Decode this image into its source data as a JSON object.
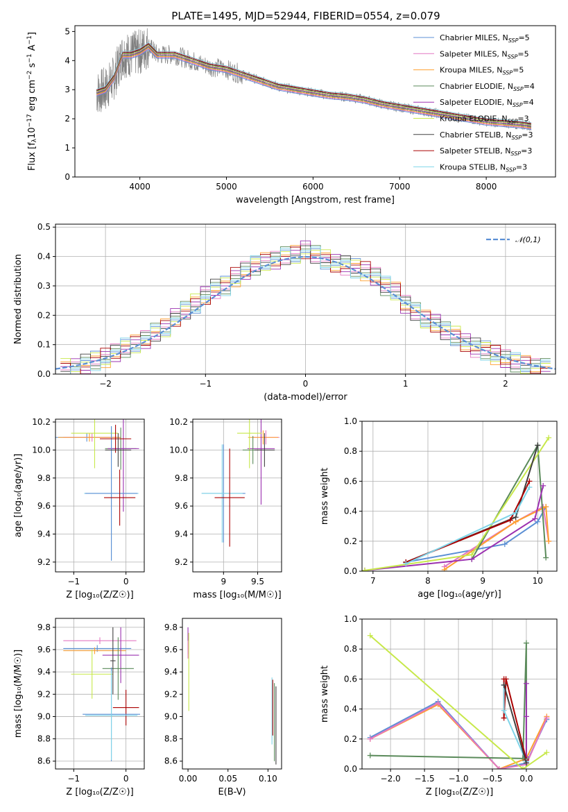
{
  "figure_title": "PLATE=1495, MJD=52944, FIBERID=0554, z=0.079",
  "colors": {
    "spectrum": "#808080",
    "grid": "#b0b0b0",
    "gauss": "#5b8fd4"
  },
  "chart_data": [
    {
      "id": "spectrum",
      "type": "line",
      "title": "PLATE=1495, MJD=52944, FIBERID=0554, z=0.079",
      "xlabel": "wavelength [Angstrom, rest frame]",
      "ylabel_parts": [
        "Flux [f",
        "λ",
        "10",
        "−17",
        " erg cm",
        "−2",
        " s",
        "−1",
        " A",
        "−1",
        "]"
      ],
      "xlim": [
        3250,
        8800
      ],
      "ylim": [
        0,
        5.2
      ],
      "xticks": [
        4000,
        5000,
        6000,
        7000,
        8000
      ],
      "yticks": [
        0,
        1,
        2,
        3,
        4,
        5
      ],
      "grid": false,
      "legend_position": "top-right",
      "data_series": {
        "name": "data",
        "x": [
          3500,
          3600,
          3700,
          3800,
          3900,
          4000,
          4100,
          4200,
          4400,
          4600,
          4800,
          5000,
          5200,
          5400,
          5600,
          5800,
          6000,
          6200,
          6400,
          6600,
          6800,
          7000,
          7200,
          7400,
          7600,
          7800,
          8000,
          8200,
          8400,
          8520
        ],
        "y": [
          2.9,
          3.0,
          3.4,
          4.2,
          4.2,
          4.3,
          4.5,
          4.2,
          4.2,
          4.0,
          3.8,
          3.7,
          3.5,
          3.3,
          3.1,
          3.0,
          2.9,
          2.8,
          2.75,
          2.65,
          2.5,
          2.4,
          2.3,
          2.2,
          2.1,
          2.0,
          1.9,
          1.85,
          1.8,
          1.75
        ]
      },
      "legend": [
        {
          "name": "Chabrier MILES",
          "sub": "SSP",
          "n": "5"
        },
        {
          "name": "Salpeter MILES",
          "sub": "SSP",
          "n": "5"
        },
        {
          "name": "Kroupa MILES",
          "sub": "SSP",
          "n": "5"
        },
        {
          "name": "Chabrier ELODIE",
          "sub": "SSP",
          "n": "4"
        },
        {
          "name": "Salpeter ELODIE",
          "sub": "SSP",
          "n": "4"
        },
        {
          "name": "Kroupa ELODIE",
          "sub": "SSP",
          "n": "3"
        },
        {
          "name": "Chabrier STELIB",
          "sub": "SSP",
          "n": "3"
        },
        {
          "name": "Salpeter STELIB",
          "sub": "SSP",
          "n": "3"
        },
        {
          "name": "Kroupa STELIB",
          "sub": "SSP",
          "n": "3"
        }
      ],
      "model_colors": [
        "#5b8fd4",
        "#e377c2",
        "#ff9f2e",
        "#5a8a5a",
        "#9b30b0",
        "#c7e84a",
        "#404040",
        "#aa0000",
        "#7fd4e8"
      ]
    },
    {
      "id": "residuals",
      "type": "line",
      "xlabel": "(data-model)/error",
      "ylabel": "Normed distribution",
      "xlim": [
        -2.5,
        2.5
      ],
      "ylim": [
        0,
        0.51
      ],
      "xticks": [
        -2,
        -1,
        0,
        1,
        2
      ],
      "yticks": [
        0.0,
        0.1,
        0.2,
        0.3,
        0.4,
        0.5
      ],
      "grid": true,
      "legend_position": "top-right",
      "gauss_label": "𝒩(0,1)",
      "bin_centers": [
        -2.4,
        -2.3,
        -2.2,
        -2.1,
        -2.0,
        -1.9,
        -1.8,
        -1.7,
        -1.6,
        -1.5,
        -1.4,
        -1.3,
        -1.2,
        -1.1,
        -1.0,
        -0.9,
        -0.8,
        -0.7,
        -0.6,
        -0.5,
        -0.4,
        -0.3,
        -0.2,
        -0.1,
        0.0,
        0.1,
        0.2,
        0.3,
        0.4,
        0.5,
        0.6,
        0.7,
        0.8,
        0.9,
        1.0,
        1.1,
        1.2,
        1.3,
        1.4,
        1.5,
        1.6,
        1.7,
        1.8,
        1.9,
        2.0,
        2.1,
        2.2,
        2.3,
        2.4
      ],
      "hist_mean": [
        0.02,
        0.025,
        0.035,
        0.045,
        0.055,
        0.07,
        0.09,
        0.1,
        0.12,
        0.14,
        0.16,
        0.19,
        0.22,
        0.24,
        0.27,
        0.29,
        0.3,
        0.33,
        0.35,
        0.37,
        0.38,
        0.39,
        0.4,
        0.41,
        0.42,
        0.41,
        0.39,
        0.38,
        0.37,
        0.36,
        0.35,
        0.33,
        0.3,
        0.28,
        0.24,
        0.21,
        0.19,
        0.17,
        0.15,
        0.13,
        0.11,
        0.09,
        0.08,
        0.065,
        0.05,
        0.04,
        0.03,
        0.025,
        0.02
      ]
    },
    {
      "id": "age-vs-Z",
      "type": "scatter",
      "xlabel": "Z [log₁₀(Z/Z☉)]",
      "ylabel": "age  [log₁₀(age/yr)]",
      "xlim": [
        -1.35,
        0.35
      ],
      "ylim": [
        9.13,
        10.22
      ],
      "xticks": [
        -1,
        0
      ],
      "yticks": [
        9.2,
        9.4,
        9.6,
        9.8,
        10.0,
        10.2
      ],
      "grid": true,
      "points": [
        {
          "x": -0.75,
          "y": 10.09,
          "xerr": 0.6,
          "yerr": 0.03,
          "c": 0
        },
        {
          "x": -0.65,
          "y": 10.09,
          "xerr": 0.55,
          "yerr": 0.03,
          "c": 1
        },
        {
          "x": -0.7,
          "y": 10.09,
          "xerr": 0.6,
          "yerr": 0.03,
          "c": 2
        },
        {
          "x": -0.6,
          "y": 10.12,
          "xerr": 0.45,
          "yerr": 0.25,
          "c": 5
        },
        {
          "x": -0.1,
          "y": 10.01,
          "xerr": 0.3,
          "yerr": 0.15,
          "c": 3
        },
        {
          "x": -0.05,
          "y": 10.01,
          "xerr": 0.3,
          "yerr": 0.45,
          "c": 4
        },
        {
          "x": -0.28,
          "y": 9.69,
          "xerr": 0.52,
          "yerr": 0.48,
          "c": 8
        },
        {
          "x": -0.28,
          "y": 9.69,
          "xerr": 0.5,
          "yerr": 0.48,
          "c": 0
        },
        {
          "x": -0.12,
          "y": 9.66,
          "xerr": 0.3,
          "yerr": 0.2,
          "c": 7
        },
        {
          "x": -0.2,
          "y": 10.08,
          "xerr": 0.3,
          "yerr": 0.1,
          "c": 7
        },
        {
          "x": -0.15,
          "y": 10.0,
          "xerr": 0.25,
          "yerr": 0.12,
          "c": 6
        }
      ]
    },
    {
      "id": "age-vs-mass",
      "type": "scatter",
      "xlabel": "mass [log₁₀(M/M☉)]",
      "ylabel": "",
      "xlim": [
        8.55,
        9.85
      ],
      "ylim": [
        9.13,
        10.22
      ],
      "xticks": [
        9.0,
        9.5
      ],
      "yticks": [
        9.2,
        9.4,
        9.6,
        9.8,
        10.0,
        10.2
      ],
      "grid": true,
      "points": [
        {
          "x": 9.0,
          "y": 9.69,
          "xerr": 0.32,
          "yerr": 0.35,
          "c": 0
        },
        {
          "x": 8.98,
          "y": 9.69,
          "xerr": 0.3,
          "yerr": 0.35,
          "c": 8
        },
        {
          "x": 9.09,
          "y": 9.66,
          "xerr": 0.22,
          "yerr": 0.35,
          "c": 7
        },
        {
          "x": 9.62,
          "y": 10.09,
          "xerr": 0.2,
          "yerr": 0.05,
          "c": 1
        },
        {
          "x": 9.58,
          "y": 10.09,
          "xerr": 0.22,
          "yerr": 0.05,
          "c": 2
        },
        {
          "x": 9.55,
          "y": 10.01,
          "xerr": 0.2,
          "yerr": 0.4,
          "c": 4
        },
        {
          "x": 9.38,
          "y": 10.12,
          "xerr": 0.18,
          "yerr": 0.25,
          "c": 5
        },
        {
          "x": 9.43,
          "y": 10.0,
          "xerr": 0.15,
          "yerr": 0.1,
          "c": 3
        },
        {
          "x": 9.6,
          "y": 10.0,
          "xerr": 0.15,
          "yerr": 0.12,
          "c": 6
        }
      ]
    },
    {
      "id": "weight-vs-age",
      "type": "line",
      "xlabel": "age  [log₁₀(age/yr)]",
      "ylabel": "mass weight",
      "xlim": [
        6.8,
        10.35
      ],
      "ylim": [
        0,
        1.0
      ],
      "xticks": [
        7,
        8,
        9,
        10
      ],
      "yticks": [
        0.0,
        0.2,
        0.4,
        0.6,
        0.8,
        1.0
      ],
      "grid": true,
      "series": [
        {
          "c": 0,
          "x": [
            7.6,
            9.4,
            10.0,
            10.15
          ],
          "y": [
            0.06,
            0.18,
            0.33,
            0.43
          ]
        },
        {
          "c": 1,
          "x": [
            8.3,
            9.6,
            10.1,
            10.2
          ],
          "y": [
            0.03,
            0.33,
            0.43,
            0.2
          ]
        },
        {
          "c": 2,
          "x": [
            8.3,
            9.6,
            10.15,
            10.2
          ],
          "y": [
            0.01,
            0.33,
            0.43,
            0.2
          ]
        },
        {
          "c": 3,
          "x": [
            8.8,
            10.0,
            10.15
          ],
          "y": [
            0.08,
            0.84,
            0.09
          ]
        },
        {
          "c": 4,
          "x": [
            6.85,
            8.8,
            9.95,
            10.1
          ],
          "y": [
            0.005,
            0.08,
            0.35,
            0.57
          ]
        },
        {
          "c": 5,
          "x": [
            6.85,
            8.8,
            10.2
          ],
          "y": [
            0.005,
            0.11,
            0.89
          ]
        },
        {
          "c": 6,
          "x": [
            7.6,
            9.6,
            10.0
          ],
          "y": [
            0.06,
            0.36,
            0.84
          ]
        },
        {
          "c": 7,
          "x": [
            7.6,
            9.5,
            9.85
          ],
          "y": [
            0.06,
            0.34,
            0.6
          ]
        },
        {
          "c": 8,
          "x": [
            7.6,
            9.6,
            9.85
          ],
          "y": [
            0.05,
            0.39,
            0.56
          ]
        }
      ]
    },
    {
      "id": "mass-vs-Z",
      "type": "scatter",
      "xlabel": "Z [log₁₀(Z/Z☉)]",
      "ylabel": "mass [log₁₀(M/M☉)]",
      "xlim": [
        -1.35,
        0.35
      ],
      "ylim": [
        8.53,
        9.88
      ],
      "xticks": [
        -1,
        0
      ],
      "yticks": [
        8.6,
        8.8,
        9.0,
        9.2,
        9.4,
        9.6,
        9.8
      ],
      "grid": true,
      "points": [
        {
          "x": -0.5,
          "y": 9.68,
          "xerr": 0.7,
          "yerr": 0.03,
          "c": 1
        },
        {
          "x": -0.55,
          "y": 9.61,
          "xerr": 0.65,
          "yerr": 0.03,
          "c": 0
        },
        {
          "x": -0.6,
          "y": 9.59,
          "xerr": 0.6,
          "yerr": 0.03,
          "c": 2
        },
        {
          "x": -0.65,
          "y": 9.38,
          "xerr": 0.4,
          "yerr": 0.22,
          "c": 5
        },
        {
          "x": -0.1,
          "y": 9.55,
          "xerr": 0.35,
          "yerr": 0.25,
          "c": 4
        },
        {
          "x": -0.15,
          "y": 9.43,
          "xerr": 0.3,
          "yerr": 0.28,
          "c": 3
        },
        {
          "x": 0.0,
          "y": 9.08,
          "xerr": 0.25,
          "yerr": 0.16,
          "c": 7
        },
        {
          "x": -0.28,
          "y": 9.02,
          "xerr": 0.55,
          "yerr": 0.42,
          "c": 0
        },
        {
          "x": -0.28,
          "y": 9.01,
          "xerr": 0.5,
          "yerr": 0.4,
          "c": 8
        },
        {
          "x": -0.25,
          "y": 9.5,
          "xerr": 0.05,
          "yerr": 0.3,
          "c": 6
        }
      ]
    },
    {
      "id": "mass-vs-ebv",
      "type": "scatter",
      "xlabel": "E(B-V)",
      "ylabel": "",
      "xlim": [
        -0.007,
        0.117
      ],
      "ylim": [
        8.53,
        9.88
      ],
      "xticks": [
        0.0,
        0.05,
        0.1
      ],
      "xticklabels": [
        "0.00",
        "0.05",
        "0.10"
      ],
      "yticks": [
        8.6,
        8.8,
        9.0,
        9.2,
        9.4,
        9.6,
        9.8
      ],
      "grid": false,
      "points": [
        {
          "x": 0.0,
          "y": 9.68,
          "xerr": 0.0,
          "yerr": 0.12,
          "c": 4
        },
        {
          "x": 0.001,
          "y": 9.4,
          "xerr": 0.0,
          "yerr": 0.35,
          "c": 5
        },
        {
          "x": 0.0,
          "y": 9.6,
          "xerr": 0.0,
          "yerr": 0.08,
          "c": 1
        },
        {
          "x": 0.105,
          "y": 9.05,
          "xerr": 0.0,
          "yerr": 0.3,
          "c": 8
        },
        {
          "x": 0.106,
          "y": 9.08,
          "xerr": 0.0,
          "yerr": 0.25,
          "c": 7
        },
        {
          "x": 0.108,
          "y": 8.95,
          "xerr": 0.0,
          "yerr": 0.35,
          "c": 3
        },
        {
          "x": 0.11,
          "y": 8.92,
          "xerr": 0.0,
          "yerr": 0.35,
          "c": 6
        }
      ]
    },
    {
      "id": "weight-vs-Z",
      "type": "line",
      "xlabel": "Z [log₁₀(Z/Z☉)]",
      "ylabel": "mass weight",
      "xlim": [
        -2.42,
        0.45
      ],
      "ylim": [
        0,
        1.0
      ],
      "xticks": [
        -2.0,
        -1.5,
        -1.0,
        -0.5,
        0.0
      ],
      "xticklabels": [
        "−2.0",
        "−1.5",
        "−1.0",
        "−0.5",
        "0.0"
      ],
      "yticks": [
        0.0,
        0.2,
        0.4,
        0.6,
        0.8,
        1.0
      ],
      "grid": true,
      "series": [
        {
          "c": 0,
          "x": [
            -2.3,
            -1.3,
            -0.4,
            0.0,
            0.3
          ],
          "y": [
            0.21,
            0.45,
            0.0,
            0.04,
            0.33
          ]
        },
        {
          "c": 2,
          "x": [
            -2.3,
            -1.3,
            -0.4,
            0.0,
            0.3
          ],
          "y": [
            0.2,
            0.43,
            0.0,
            0.07,
            0.35
          ]
        },
        {
          "c": 1,
          "x": [
            -2.3,
            -1.3,
            -0.4,
            0.0,
            0.3
          ],
          "y": [
            0.2,
            0.44,
            0.0,
            0.03,
            0.34
          ]
        },
        {
          "c": 3,
          "x": [
            -2.3,
            -0.05,
            0.0,
            0.0
          ],
          "y": [
            0.09,
            0.07,
            0.84,
            0.07
          ]
        },
        {
          "c": 5,
          "x": [
            -2.3,
            -0.05,
            0.3
          ],
          "y": [
            0.89,
            0.0,
            0.11
          ]
        },
        {
          "c": 4,
          "x": [
            0.0,
            0.0,
            0.0
          ],
          "y": [
            0.57,
            0.35,
            0.08
          ]
        },
        {
          "c": 7,
          "x": [
            -0.33,
            -0.33,
            -0.3,
            0.0
          ],
          "y": [
            0.6,
            0.34,
            0.6,
            0.06
          ]
        },
        {
          "c": 8,
          "x": [
            -0.33,
            -0.33,
            0.0
          ],
          "y": [
            0.56,
            0.39,
            0.05
          ]
        },
        {
          "c": 6,
          "x": [
            -0.33,
            0.0
          ],
          "y": [
            0.56,
            0.04
          ]
        }
      ]
    }
  ]
}
